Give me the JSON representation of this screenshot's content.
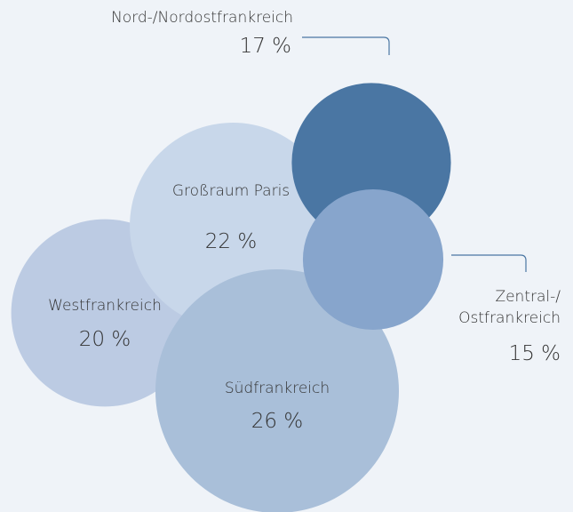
{
  "chart_data": {
    "type": "bubble",
    "categories": [
      "Westfrankreich",
      "Großraum Paris",
      "Südfrankreich",
      "Nord-/Nordostfrankreich",
      "Zentral-/ Ostfrankreich"
    ],
    "values": [
      20,
      22,
      26,
      17,
      15
    ],
    "value_labels": [
      "20 %",
      "22 %",
      "26 %",
      "17 %",
      "15 %"
    ],
    "colors": [
      "#bccbe3",
      "#c8d7ea",
      "#a9bfd9",
      "#4a76a3",
      "#87a5cc"
    ]
  }
}
